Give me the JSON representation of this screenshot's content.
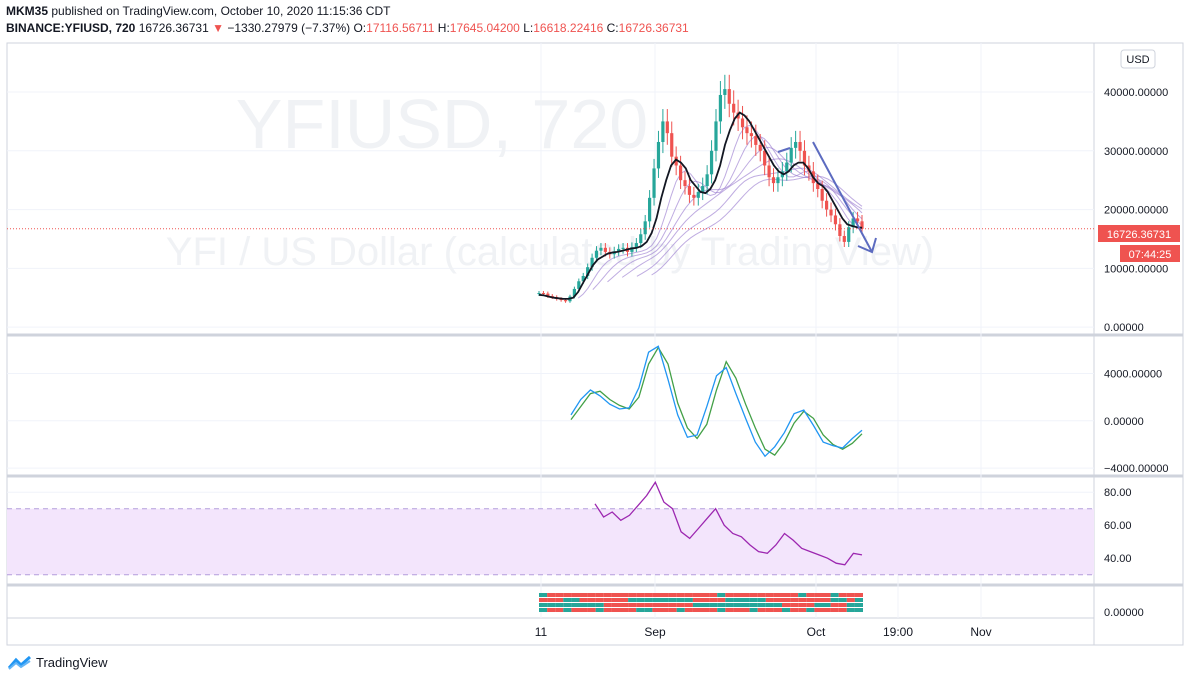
{
  "header": {
    "author": "MKM35",
    "published_text": "published on TradingView.com, October 10, 2020 11:15:36 CDT",
    "symbol": "BINANCE:YFIUSD, 720",
    "last": "16726.36731",
    "change_arrow": "▼",
    "change": "−1330.27979 (−7.37%)",
    "o_label": "O:",
    "o_value": "17116.56711",
    "h_label": "H:",
    "h_value": "17645.04200",
    "l_label": "L:",
    "l_value": "16618.22416",
    "c_label": "C:",
    "c_value": "16726.36731"
  },
  "watermark": {
    "line1": "YFIUSD, 720",
    "line2": "YFI / US Dollar (calculated by TradingView)"
  },
  "currency_button": "USD",
  "price_tag": "16726.36731",
  "countdown_tag": "07:44:25",
  "footer": {
    "brand": "TradingView"
  },
  "colors": {
    "up": "#26a69a",
    "down": "#ef5350",
    "ma": "#131722",
    "ribbon": "#9575cd",
    "macd": "#2196f3",
    "signal": "#43a047",
    "rsi": "#9c27b0",
    "rsi_band": "#f3e5fc",
    "trend": "#5c6bc0"
  },
  "chart_data": {
    "type": "candlestick",
    "x_ticks": [
      "11",
      "Sep",
      "Oct",
      "19:00",
      "Nov"
    ],
    "price_axis": {
      "ticks": [
        0,
        10000,
        20000,
        30000,
        40000
      ],
      "tick_labels": [
        "0.00000",
        "10000.00000",
        "20000.00000",
        "30000.00000",
        "40000.00000"
      ],
      "ylim": [
        -1000,
        48000
      ]
    },
    "price_close_series": [
      5800,
      5700,
      5300,
      5100,
      4800,
      4600,
      4400,
      5200,
      6500,
      7800,
      8700,
      10200,
      11800,
      13000,
      13500,
      12800,
      12400,
      12900,
      13300,
      13500,
      12800,
      13600,
      14300,
      15800,
      18000,
      22000,
      27000,
      31500,
      35000,
      33000,
      29000,
      27500,
      25000,
      24000,
      22500,
      22000,
      23000,
      24000,
      26000,
      30000,
      35000,
      39500,
      40500,
      38000,
      36500,
      35500,
      34000,
      33000,
      32500,
      31000,
      30000,
      27500,
      25500,
      24500,
      25500,
      26500,
      28000,
      30500,
      31500,
      30000,
      27500,
      26500,
      24500,
      23500,
      21500,
      20000,
      19000,
      17500,
      15500,
      14500,
      17000,
      18500,
      18000,
      16726
    ],
    "price_ma_series": [
      5500,
      5400,
      5200,
      5000,
      4900,
      4800,
      4800,
      5000,
      6000,
      7500,
      9000,
      10500,
      11500,
      12000,
      12500,
      12700,
      12800,
      13000,
      13200,
      13400,
      13500,
      13800,
      14500,
      16000,
      18500,
      22000,
      25000,
      27500,
      28500,
      28000,
      27000,
      25000,
      24000,
      23000,
      22800,
      23500,
      25000,
      27500,
      31000,
      33500,
      35500,
      36500,
      36000,
      35000,
      33500,
      32000,
      30500,
      29000,
      27500,
      26500,
      26000,
      26500,
      27500,
      28000,
      28000,
      27000,
      25500,
      24500,
      24000,
      23000,
      21500,
      20000,
      18500,
      17500,
      17200,
      17000,
      16900
    ],
    "macd_axis": {
      "ticks": [
        -4000,
        0,
        4000
      ],
      "tick_labels": [
        "−4000.00000",
        "0.00000",
        "4000.00000"
      ],
      "ylim": [
        -4500,
        7000
      ]
    },
    "macd_series": [
      500,
      1800,
      2600,
      2100,
      1400,
      1000,
      1100,
      2800,
      5800,
      6300,
      3500,
      500,
      -1400,
      -1200,
      1200,
      3800,
      4500,
      2300,
      200,
      -1800,
      -3000,
      -2200,
      -1000,
      600,
      900,
      -400,
      -1800,
      -2100,
      -2300,
      -1500,
      -800
    ],
    "signal_series": [
      100,
      1200,
      2300,
      2500,
      1800,
      1300,
      1000,
      2000,
      4800,
      6200,
      4800,
      1500,
      -600,
      -1500,
      -300,
      2600,
      5000,
      3600,
      1400,
      -600,
      -2400,
      -2900,
      -1800,
      -200,
      800,
      200,
      -1200,
      -2000,
      -2400,
      -1900,
      -1100
    ],
    "rsi_axis": {
      "ticks": [
        40,
        60,
        80
      ],
      "tick_labels": [
        "40.00",
        "60.00",
        "80.00"
      ],
      "ylim": [
        25,
        88
      ],
      "band": [
        30,
        70
      ]
    },
    "rsi_series": [
      73,
      65,
      68,
      63,
      66,
      72,
      78,
      86,
      74,
      70,
      56,
      52,
      58,
      64,
      70,
      60,
      55,
      53,
      48,
      44,
      43,
      48,
      55,
      51,
      46,
      44,
      42,
      40,
      37,
      36,
      43,
      42
    ],
    "bottom_axis": {
      "ticks": [
        0
      ],
      "tick_labels": [
        "0.00000"
      ]
    },
    "bottom_bars": [
      [
        1,
        0,
        0,
        0,
        0,
        0,
        0,
        0,
        0,
        0,
        0,
        0,
        0,
        0,
        0,
        0,
        0,
        0,
        0,
        0,
        0,
        0,
        1,
        0,
        0,
        0,
        0,
        0,
        0,
        0,
        0,
        0,
        1,
        0,
        0,
        0,
        1,
        0,
        0,
        0
      ],
      [
        0,
        0,
        0,
        1,
        1,
        0,
        0,
        0,
        0,
        0,
        0,
        1,
        1,
        1,
        1,
        1,
        1,
        1,
        1,
        0,
        0,
        0,
        0,
        1,
        1,
        1,
        1,
        1,
        0,
        0,
        0,
        0,
        0,
        0,
        0,
        0,
        1,
        1,
        0,
        1
      ],
      [
        1,
        1,
        1,
        1,
        1,
        1,
        1,
        1,
        0,
        0,
        0,
        0,
        0,
        0,
        0,
        0,
        0,
        0,
        0,
        1,
        1,
        1,
        1,
        1,
        1,
        1,
        1,
        1,
        1,
        1,
        0,
        0,
        0,
        0,
        1,
        1,
        0,
        0,
        1,
        1
      ],
      [
        1,
        0,
        0,
        1,
        0,
        0,
        0,
        1,
        0,
        0,
        0,
        0,
        1,
        1,
        0,
        0,
        0,
        1,
        0,
        0,
        0,
        0,
        1,
        0,
        0,
        0,
        1,
        0,
        0,
        0,
        1,
        0,
        0,
        1,
        0,
        0,
        0,
        0,
        1,
        1
      ]
    ]
  }
}
